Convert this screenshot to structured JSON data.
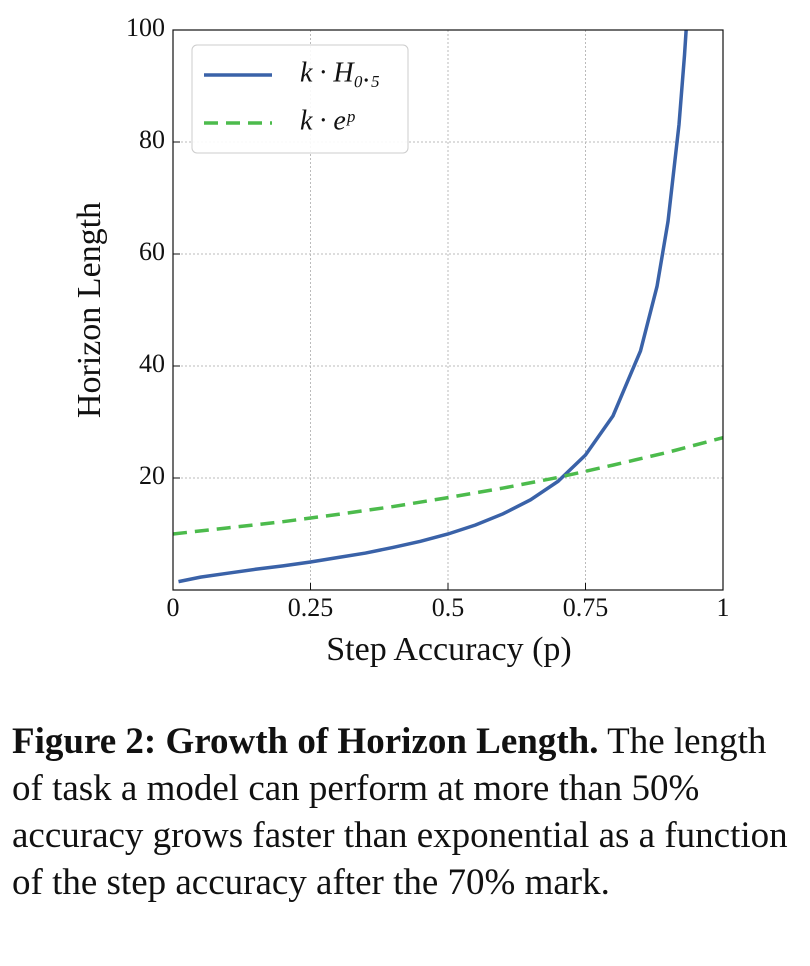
{
  "chart_data": {
    "type": "line",
    "xlabel": "Step Accuracy (p)",
    "ylabel": "Horizon Length",
    "xlim": [
      0,
      1
    ],
    "ylim": [
      0,
      100
    ],
    "xticks": [
      0,
      0.25,
      0.5,
      0.75,
      1
    ],
    "yticks": [
      20,
      40,
      60,
      80,
      100
    ],
    "grid": true,
    "legend": "upper left",
    "series": [
      {
        "name": "k · H₀.₅",
        "color": "#3a62a8",
        "dash": false,
        "x": [
          0.01,
          0.05,
          0.1,
          0.15,
          0.2,
          0.25,
          0.3,
          0.35,
          0.4,
          0.45,
          0.5,
          0.55,
          0.6,
          0.65,
          0.7,
          0.75,
          0.8,
          0.85,
          0.88,
          0.9,
          0.92,
          0.93,
          0.933
        ],
        "values": [
          1.5,
          2.3,
          3.0,
          3.7,
          4.3,
          5.0,
          5.8,
          6.6,
          7.6,
          8.7,
          10.0,
          11.6,
          13.6,
          16.1,
          19.4,
          24.1,
          31.1,
          42.7,
          54.2,
          65.8,
          83.1,
          95.5,
          100
        ]
      },
      {
        "name": "k · eᵖ",
        "color": "#4cbb4c",
        "dash": true,
        "x": [
          0,
          0.1,
          0.2,
          0.3,
          0.4,
          0.5,
          0.6,
          0.7,
          0.8,
          0.9,
          1
        ],
        "values": [
          10,
          11.1,
          12.2,
          13.5,
          14.9,
          16.5,
          18.2,
          20.1,
          22.3,
          24.6,
          27.2
        ]
      }
    ]
  },
  "caption": {
    "label": "Figure 2: Growth of Horizon Length.",
    "text": "The length of task a model can perform at more than 50% accuracy grows faster than exponential as a function of the step accuracy after the 70% mark."
  }
}
